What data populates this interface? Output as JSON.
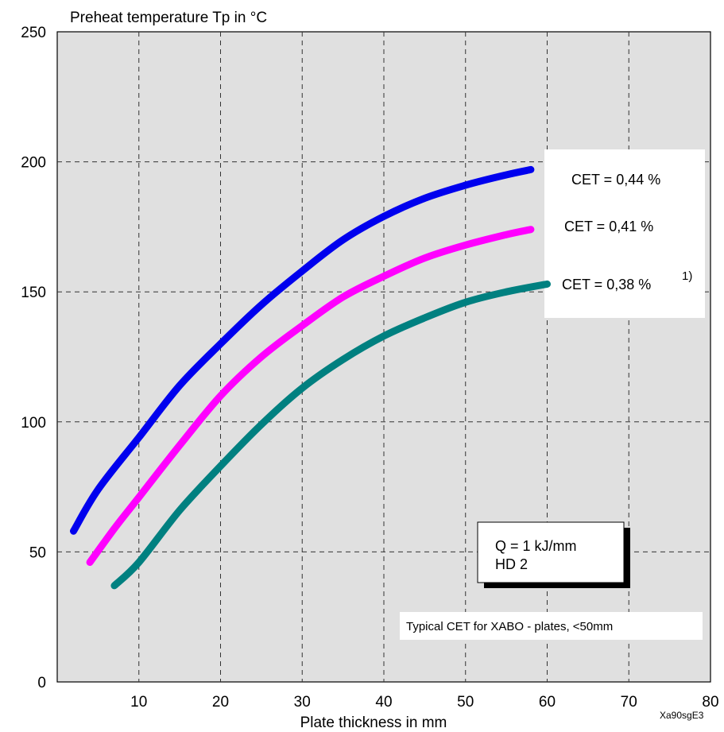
{
  "chart_data": {
    "type": "line",
    "ylabel": "Preheat temperature Tp in °C",
    "xlabel": "Plate thickness in mm",
    "xlim": [
      0,
      80
    ],
    "ylim": [
      0,
      250
    ],
    "x_ticks": [
      "10",
      "20",
      "30",
      "40",
      "50",
      "60",
      "70",
      "80"
    ],
    "y_ticks": [
      "0",
      "50",
      "100",
      "150",
      "200",
      "250"
    ],
    "grid": true,
    "series": [
      {
        "name": "CET = 0,44 %",
        "color": "#0000ee",
        "x": [
          2,
          5,
          10,
          15,
          20,
          25,
          30,
          35,
          40,
          45,
          50,
          55,
          58
        ],
        "y": [
          58,
          74,
          94,
          114,
          130,
          145,
          158,
          170,
          179,
          186,
          191,
          195,
          197
        ]
      },
      {
        "name": "CET = 0,41 %",
        "color": "#ff00ff",
        "x": [
          4,
          7,
          10,
          15,
          20,
          25,
          30,
          35,
          40,
          45,
          50,
          55,
          58
        ],
        "y": [
          46,
          59,
          71,
          91,
          110,
          125,
          137,
          148,
          156,
          163,
          168,
          172,
          174
        ]
      },
      {
        "name": "CET = 0,38 %",
        "footnote": "1)",
        "color": "#008080",
        "x": [
          7,
          10,
          15,
          20,
          25,
          30,
          35,
          40,
          45,
          50,
          55,
          60
        ],
        "y": [
          37,
          46,
          66,
          83,
          99,
          113,
          124,
          133,
          140,
          146,
          150,
          153
        ]
      }
    ],
    "annotations": {
      "box_line1": "Q = 1 kJ/mm",
      "box_line2": "HD 2",
      "typical_note": "Typical CET for XABO - plates, <50mm",
      "figure_code": "Xa90sgE3"
    }
  }
}
